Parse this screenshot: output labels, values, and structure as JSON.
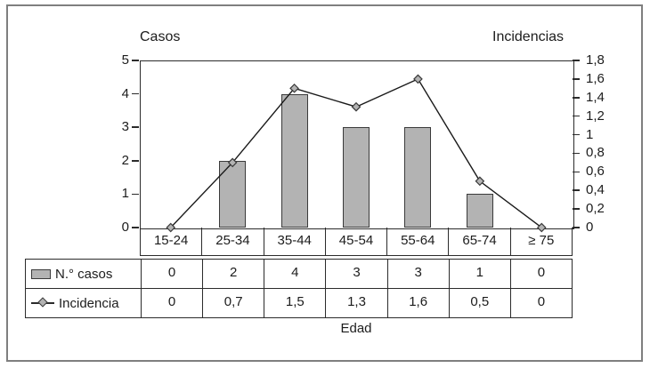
{
  "chart_data": {
    "type": "combo-bar-line",
    "categories": [
      "15-24",
      "25-34",
      "35-44",
      "45-54",
      "55-64",
      "65-74",
      "≥ 75"
    ],
    "series": [
      {
        "name": "N.° casos",
        "type": "bar",
        "axis": "left",
        "values": [
          0,
          2,
          4,
          3,
          3,
          1,
          0
        ],
        "display_values": [
          "0",
          "2",
          "4",
          "3",
          "3",
          "1",
          "0"
        ]
      },
      {
        "name": "Incidencia",
        "type": "line",
        "axis": "right",
        "values": [
          0,
          0.7,
          1.5,
          1.3,
          1.6,
          0.5,
          0
        ],
        "display_values": [
          "0",
          "0,7",
          "1,5",
          "1,3",
          "1,6",
          "0,5",
          "0"
        ]
      }
    ],
    "left_axis": {
      "title": "Casos",
      "min": 0,
      "max": 5,
      "tick_step": 1,
      "tick_labels_top_to_bottom": [
        "5",
        "4",
        "3",
        "2",
        "1",
        "0"
      ]
    },
    "right_axis": {
      "title": "Incidencias",
      "min": 0,
      "max": 1.8,
      "tick_step": 0.2,
      "tick_labels_top_to_bottom": [
        "1,8",
        "1,6",
        "1,4",
        "1,2",
        "1",
        "0,8",
        "0,6",
        "0,4",
        "0,2",
        "0"
      ]
    },
    "x_axis": {
      "title": "Edad"
    },
    "legend_position": "table-left",
    "grid": false,
    "data_table_shown": true,
    "colors": {
      "bar_fill": "#b3b3b3",
      "bar_border": "#3a3a3a",
      "line": "#1a1a1a",
      "marker_fill": "#b3b3b3",
      "axis": "#2b2b2b",
      "outer_frame": "#7f7f7f"
    }
  }
}
